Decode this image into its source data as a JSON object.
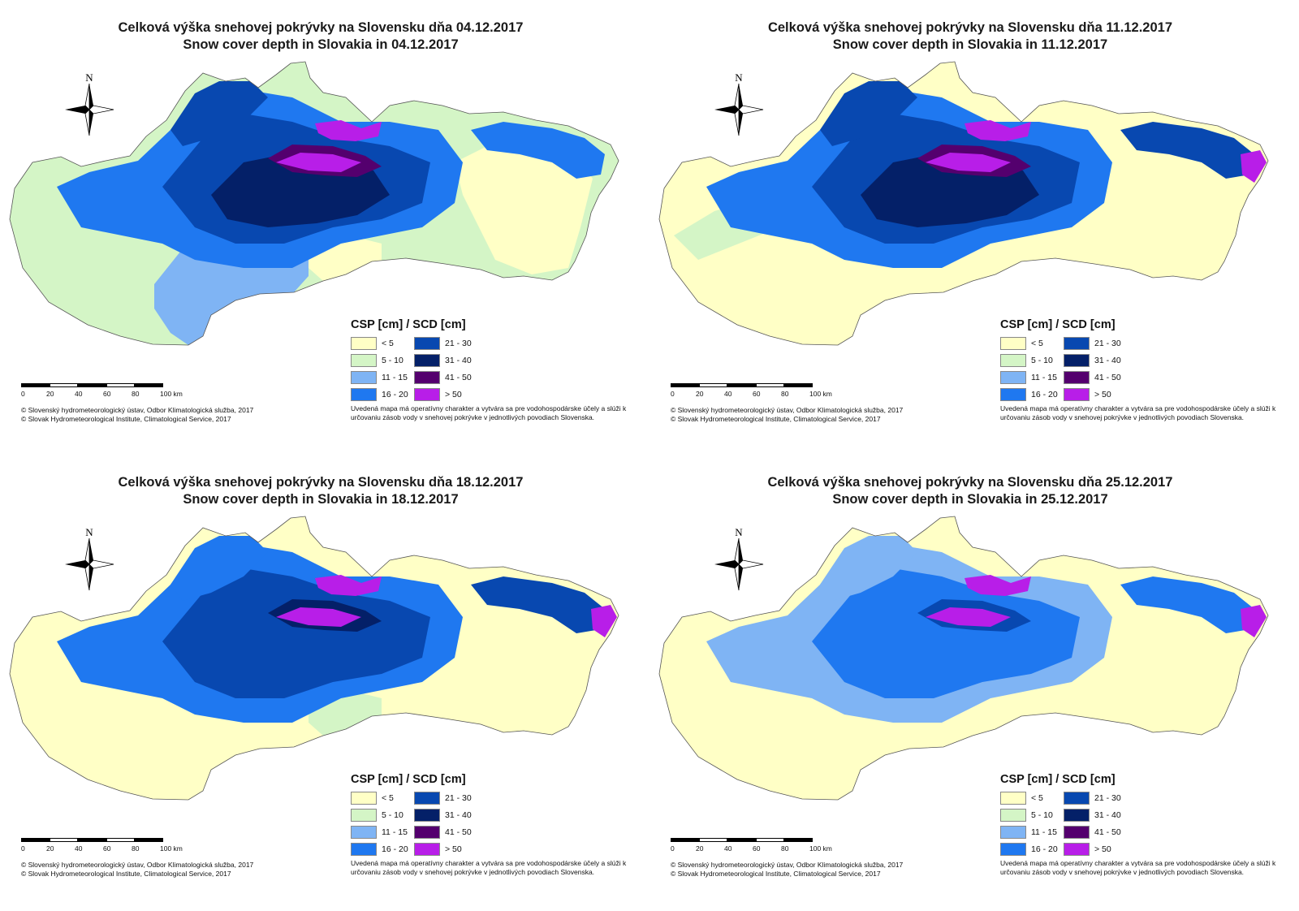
{
  "colors": {
    "lt5": "#ffffc6",
    "c5_10": "#d4f5c6",
    "c11_15": "#7fb4f4",
    "c16_20": "#1f78f0",
    "c21_30": "#0848b0",
    "c31_40": "#042068",
    "c41_50": "#54006e",
    "gt50": "#b81ee8",
    "outline": "#555555"
  },
  "legend": {
    "title": "CSP [cm] / SCD [cm]",
    "items": [
      {
        "label": "< 5",
        "color_key": "lt5"
      },
      {
        "label": "5 - 10",
        "color_key": "c5_10"
      },
      {
        "label": "11 - 15",
        "color_key": "c11_15"
      },
      {
        "label": "16 - 20",
        "color_key": "c16_20"
      },
      {
        "label": "21 - 30",
        "color_key": "c21_30"
      },
      {
        "label": "31 - 40",
        "color_key": "c31_40"
      },
      {
        "label": "41 - 50",
        "color_key": "c41_50"
      },
      {
        "label": "> 50",
        "color_key": "gt50"
      }
    ]
  },
  "scalebar": {
    "ticks": [
      "0",
      "20",
      "40",
      "60",
      "80",
      "100 km"
    ]
  },
  "north_label": "N",
  "copyright": [
    "© Slovenský hydrometeorologický ústav, Odbor Klimatologická služba, 2017",
    "© Slovak Hydrometeorological Institute, Climatological Service, 2017"
  ],
  "note": "Uvedená mapa má operatívny charakter a vytvára sa pre vodohospodárske účely a slúži k určovaniu zásob vody v snehovej pokrývke v jednotlivých povodiach Slovenska.",
  "panels": [
    {
      "title_sk": "Celková výška snehovej pokrývky na Slovensku dňa 04.12.2017",
      "title_en": "Snow cover depth in Slovakia in 04.12.2017",
      "base_class": "c5_10",
      "regions": [
        {
          "name": "east-lowland",
          "cls": "lt5"
        },
        {
          "name": "south-central-lowland",
          "cls": "lt5"
        },
        {
          "name": "west-lowland-fringe",
          "cls": "c11_15"
        },
        {
          "name": "central-mountains",
          "cls": "c16_20"
        },
        {
          "name": "central-high",
          "cls": "c21_30"
        },
        {
          "name": "central-core",
          "cls": "c31_40"
        },
        {
          "name": "northwest-mountains",
          "cls": "c21_30"
        },
        {
          "name": "tatra-crest",
          "cls": "c41_50"
        },
        {
          "name": "tatra-peaks",
          "cls": "gt50"
        },
        {
          "name": "north-tatra",
          "cls": "gt50"
        },
        {
          "name": "east-ridge",
          "cls": "c16_20"
        }
      ]
    },
    {
      "title_sk": "Celková výška snehovej pokrývky na Slovensku dňa 11.12.2017",
      "title_en": "Snow cover depth in Slovakia in 11.12.2017",
      "base_class": "lt5",
      "regions": [
        {
          "name": "west-low-band",
          "cls": "c5_10"
        },
        {
          "name": "central-mountains",
          "cls": "c16_20"
        },
        {
          "name": "central-high",
          "cls": "c21_30"
        },
        {
          "name": "central-core",
          "cls": "c31_40"
        },
        {
          "name": "northwest-mountains",
          "cls": "c21_30"
        },
        {
          "name": "tatra-crest",
          "cls": "c41_50"
        },
        {
          "name": "tatra-peaks",
          "cls": "gt50"
        },
        {
          "name": "north-tatra",
          "cls": "gt50"
        },
        {
          "name": "east-ridge",
          "cls": "c21_30"
        },
        {
          "name": "east-peaks",
          "cls": "gt50"
        }
      ]
    },
    {
      "title_sk": "Celková výška snehovej pokrývky na Slovensku dňa 18.12.2017",
      "title_en": "Snow cover depth in Slovakia in 18.12.2017",
      "base_class": "lt5",
      "regions": [
        {
          "name": "south-central-lowland",
          "cls": "c5_10"
        },
        {
          "name": "central-mountains",
          "cls": "c16_20"
        },
        {
          "name": "central-high",
          "cls": "c21_30"
        },
        {
          "name": "northwest-mountains",
          "cls": "c16_20"
        },
        {
          "name": "tatra-crest",
          "cls": "c31_40"
        },
        {
          "name": "tatra-peaks",
          "cls": "gt50"
        },
        {
          "name": "north-tatra",
          "cls": "gt50"
        },
        {
          "name": "east-ridge",
          "cls": "c21_30"
        },
        {
          "name": "east-peaks",
          "cls": "gt50"
        }
      ]
    },
    {
      "title_sk": "Celková výška snehovej pokrývky na Slovensku dňa 25.12.2017",
      "title_en": "Snow cover depth in Slovakia in 25.12.2017",
      "base_class": "lt5",
      "regions": [
        {
          "name": "central-mountains",
          "cls": "c11_15"
        },
        {
          "name": "central-high",
          "cls": "c16_20"
        },
        {
          "name": "northwest-mountains",
          "cls": "c11_15"
        },
        {
          "name": "tatra-crest",
          "cls": "c21_30"
        },
        {
          "name": "tatra-peaks",
          "cls": "gt50"
        },
        {
          "name": "north-tatra",
          "cls": "gt50"
        },
        {
          "name": "east-ridge",
          "cls": "c16_20"
        },
        {
          "name": "east-peaks",
          "cls": "gt50"
        }
      ]
    }
  ]
}
